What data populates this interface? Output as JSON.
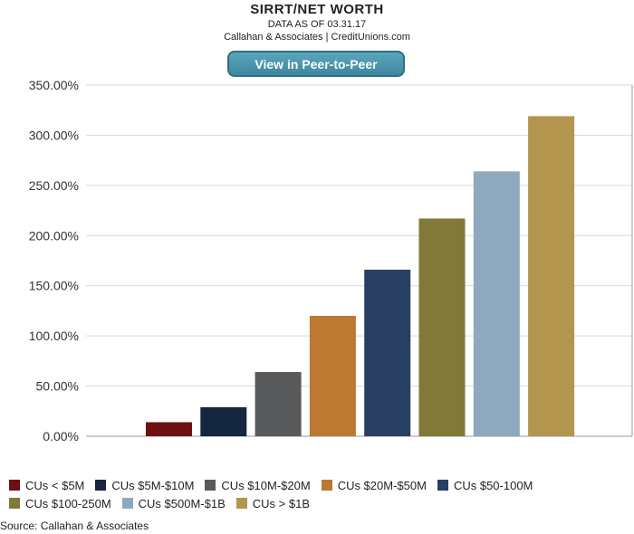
{
  "header": {
    "title": "SIRRT/NET WORTH",
    "subtitle": "DATA AS OF 03.31.17",
    "attribution": "Callahan & Associates | CreditUnions.com"
  },
  "button": {
    "label": "View in Peer-to-Peer"
  },
  "footer": {
    "source": "Source: Callahan & Associates"
  },
  "chart_data": {
    "type": "bar",
    "title": "SIRRT/NET WORTH",
    "ylim": [
      0,
      350
    ],
    "yticks": [
      0,
      50,
      100,
      150,
      200,
      250,
      300,
      350
    ],
    "ytick_labels": [
      "0.00%",
      "50.00%",
      "100.00%",
      "150.00%",
      "200.00%",
      "250.00%",
      "300.00%",
      "350.00%"
    ],
    "grid": true,
    "legend_position": "bottom",
    "series": [
      {
        "name": "CUs < $5M",
        "value": 14,
        "color": "#6e0f12"
      },
      {
        "name": "CUs $5M-$10M",
        "value": 29,
        "color": "#142640"
      },
      {
        "name": "CUs $10M-$20M",
        "value": 64,
        "color": "#58595b"
      },
      {
        "name": "CUs $20M-$50M",
        "value": 120,
        "color": "#bd7832"
      },
      {
        "name": "CUs $50-100M",
        "value": 166,
        "color": "#283f63"
      },
      {
        "name": "CUs $100-250M",
        "value": 217,
        "color": "#807938"
      },
      {
        "name": "CUs $500M-$1B",
        "value": 264,
        "color": "#8ea9bd"
      },
      {
        "name": "CUs > $1B",
        "value": 319,
        "color": "#b3954e"
      }
    ]
  }
}
